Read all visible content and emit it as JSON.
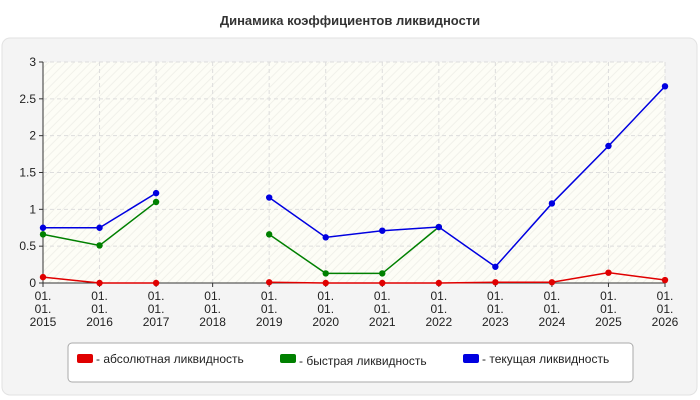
{
  "chart_data": {
    "type": "line",
    "title": "Динамика коэффициентов ликвидности",
    "categories": [
      [
        "01.",
        "01.",
        "2015"
      ],
      [
        "01.",
        "01.",
        "2016"
      ],
      [
        "01.",
        "01.",
        "2017"
      ],
      [
        "01.",
        "01.",
        "2018"
      ],
      [
        "01.",
        "01.",
        "2019"
      ],
      [
        "01.",
        "01.",
        "2020"
      ],
      [
        "01.",
        "01.",
        "2021"
      ],
      [
        "01.",
        "01.",
        "2022"
      ],
      [
        "01.",
        "01.",
        "2023"
      ],
      [
        "01.",
        "01.",
        "2024"
      ],
      [
        "01.",
        "01.",
        "2025"
      ],
      [
        "01.",
        "01.",
        "2026"
      ]
    ],
    "series": [
      {
        "name": "- абсолютная ликвидность",
        "color": "#e00000",
        "values": [
          0.08,
          0.0,
          0.0,
          null,
          0.01,
          0.0,
          0.0,
          0.0,
          0.01,
          0.01,
          0.14,
          0.04
        ]
      },
      {
        "name": "- быстрая ликвидность",
        "color": "#008000",
        "values": [
          0.66,
          0.51,
          1.1,
          null,
          0.66,
          0.13,
          0.13,
          0.76,
          null,
          null,
          null,
          null
        ]
      },
      {
        "name": "- текущая ликвидность",
        "color": "#0000e0",
        "values": [
          0.75,
          0.75,
          1.22,
          null,
          1.16,
          0.62,
          0.71,
          0.76,
          0.22,
          1.08,
          1.86,
          2.67
        ]
      }
    ],
    "ylim": [
      0,
      3
    ],
    "yticks": [
      0,
      0.5,
      1,
      1.5,
      2,
      2.5,
      3
    ],
    "grid": true
  }
}
